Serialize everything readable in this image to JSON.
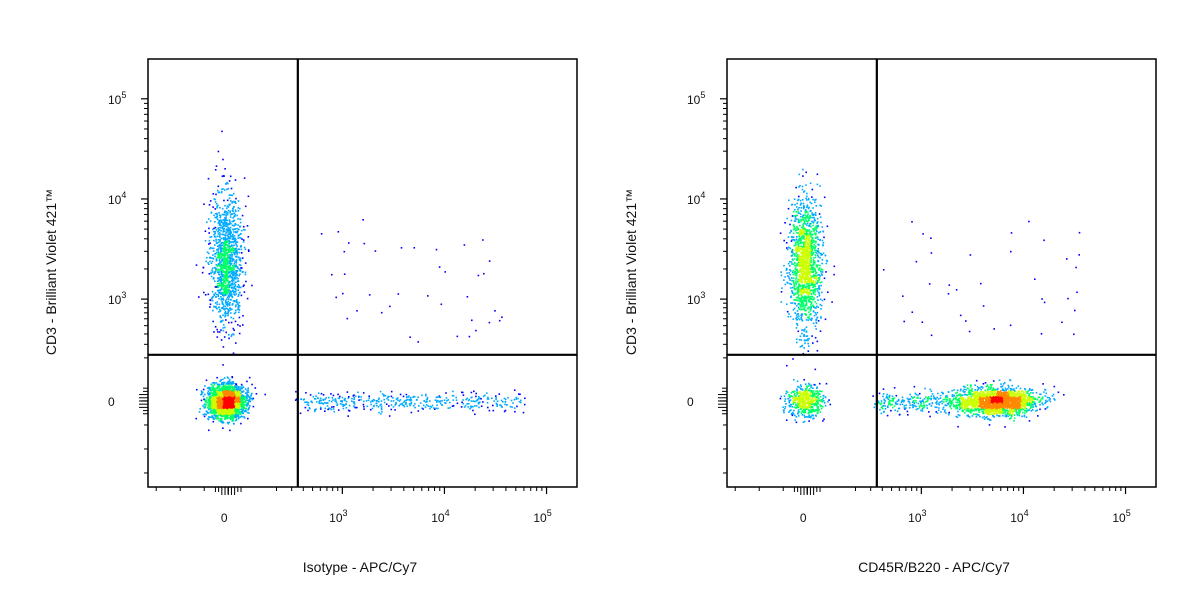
{
  "chart_data": [
    {
      "type": "scatter",
      "scale": "biexponential",
      "xlabel": "Isotype - APC/Cy7",
      "ylabel": "CD3 - Brilliant Violet 421™",
      "x_ticks": [
        {
          "value": 0,
          "label": "0"
        },
        {
          "value": 1000,
          "label": "10",
          "sup": "3"
        },
        {
          "value": 10000,
          "label": "10",
          "sup": "4"
        },
        {
          "value": 100000,
          "label": "10",
          "sup": "5"
        }
      ],
      "y_ticks": [
        {
          "value": 0,
          "label": "0"
        },
        {
          "value": 1000,
          "label": "10",
          "sup": "3"
        },
        {
          "value": 10000,
          "label": "10",
          "sup": "4"
        },
        {
          "value": 100000,
          "label": "10",
          "sup": "5"
        }
      ],
      "gate": {
        "x": 350,
        "y": 220
      },
      "populations": [
        {
          "name": "cd3_positive",
          "x_center": -20,
          "y_center": 2500,
          "count": 1300
        },
        {
          "name": "double_negative",
          "x_center": -20,
          "y_center": 0,
          "count": 2600
        },
        {
          "name": "x_tail_negative",
          "x_range": [
            350,
            60000
          ],
          "y_center": 0,
          "count": 420
        }
      ],
      "density_colors": [
        "#0000ff",
        "#00aaff",
        "#00ff66",
        "#ccff00",
        "#ff8800",
        "#ff0000"
      ]
    },
    {
      "type": "scatter",
      "scale": "biexponential",
      "xlabel": "CD45R/B220 - APC/Cy7",
      "ylabel": "CD3 - Brilliant Violet 421™",
      "x_ticks": [
        {
          "value": 0,
          "label": "0"
        },
        {
          "value": 1000,
          "label": "10",
          "sup": "3"
        },
        {
          "value": 10000,
          "label": "10",
          "sup": "4"
        },
        {
          "value": 100000,
          "label": "10",
          "sup": "5"
        }
      ],
      "y_ticks": [
        {
          "value": 0,
          "label": "0"
        },
        {
          "value": 1000,
          "label": "10",
          "sup": "3"
        },
        {
          "value": 10000,
          "label": "10",
          "sup": "4"
        },
        {
          "value": 100000,
          "label": "10",
          "sup": "5"
        }
      ],
      "gate": {
        "x": 350,
        "y": 220
      },
      "populations": [
        {
          "name": "cd3_positive",
          "x_center": -20,
          "y_center": 2300,
          "count": 1500
        },
        {
          "name": "double_negative",
          "x_center": -20,
          "y_center": 0,
          "count": 500
        },
        {
          "name": "b220_positive",
          "x_center": 5500,
          "y_center": 0,
          "count": 1800
        },
        {
          "name": "b220_tail",
          "x_range": [
            350,
            3000
          ],
          "y_center": 0,
          "count": 300
        }
      ],
      "density_colors": [
        "#0000ff",
        "#00aaff",
        "#00ff66",
        "#ccff00",
        "#ff8800",
        "#ff0000"
      ]
    }
  ]
}
